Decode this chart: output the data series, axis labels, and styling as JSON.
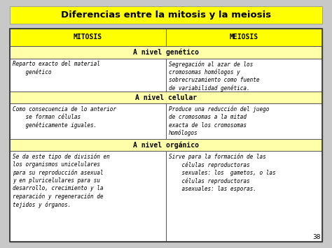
{
  "title": "Diferencias entre la mitosis y la meiosis",
  "title_bg": "#FFFF00",
  "header_bg": "#FFFF00",
  "section_bg": "#FFFFAA",
  "cell_bg": "#FFFFFF",
  "outer_bg": "#C8C8C8",
  "fig_bg": "#C8C8C8",
  "border_color": "#555555",
  "headers": [
    "MITOSIS",
    "MEIOSIS"
  ],
  "sections": [
    {
      "label": "A nivel genético",
      "mitosis": "Reparto exacto del material\n    genético",
      "meiosis": "Segregación al azar de los\ncromosomas homólogos y\nsobrecruzamiento como fuente\nde variabilidad genética."
    },
    {
      "label": "A nivel celular",
      "mitosis": "Como consecuencia de lo anterior\n    se forman células\n    genéticamente iguales.",
      "meiosis": "Produce una reducción del juego\nde cromosomas a la mitad\nexacta de los cromosomas\nhomólogos"
    },
    {
      "label": "A nivel orgánico",
      "mitosis": "Se da este tipo de división en\nlos organismos unicelulares\npara su reproducción asexual\ny en pluricelulares para su\ndesarrollo, crecimiento y la\nreparación y regeneración de\ntejidos y órganos.",
      "meiosis": "Sirve para la formación de las\n    células reproductoras\n    sexuales: los  gametos, o las\n    células reproductoras\n    asexuales: las esporas."
    }
  ],
  "page_number": "38",
  "title_fontsize": 9.5,
  "header_fontsize": 7.0,
  "section_fontsize": 7.0,
  "cell_fontsize": 5.6
}
